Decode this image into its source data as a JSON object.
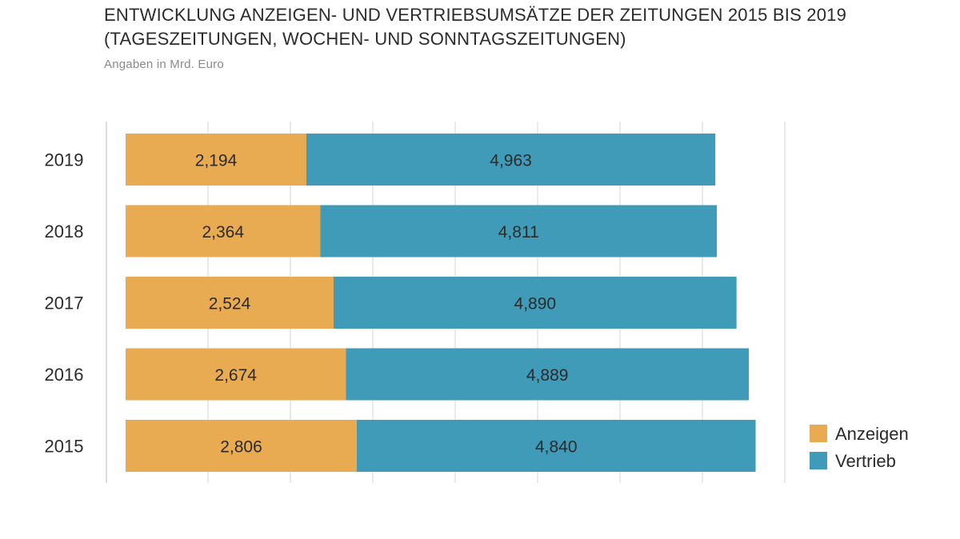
{
  "header": {
    "title_line1": "ENTWICKLUNG ANZEIGEN- UND VERTRIEBSUMSÄTZE DER ZEITUNGEN 2015 BIS 2019",
    "title_line2": "(TAGESZEITUNGEN, WOCHEN- UND SONNTAGSZEITUNGEN)",
    "subtitle": "Angaben in Mrd. Euro"
  },
  "colors": {
    "anzeigen": "#e8ab52",
    "vertrieb": "#3f9bb8",
    "grid": "#e3e3e3",
    "axis": "#d0d0d0"
  },
  "chart_data": {
    "type": "bar",
    "orientation": "horizontal",
    "stacked": true,
    "categories": [
      "2019",
      "2018",
      "2017",
      "2016",
      "2015"
    ],
    "series": [
      {
        "name": "Anzeigen",
        "values": [
          2.194,
          2.364,
          2.524,
          2.674,
          2.806
        ],
        "labels": [
          "2,194",
          "2,364",
          "2,524",
          "2,674",
          "2,806"
        ]
      },
      {
        "name": "Vertrieb",
        "values": [
          4.963,
          4.811,
          4.89,
          4.889,
          4.84
        ],
        "labels": [
          "4,963",
          "4,811",
          "4,890",
          "4,889",
          "4,840"
        ]
      }
    ],
    "xlim": [
      0,
      8
    ],
    "grid": true,
    "legend_position": "right"
  }
}
